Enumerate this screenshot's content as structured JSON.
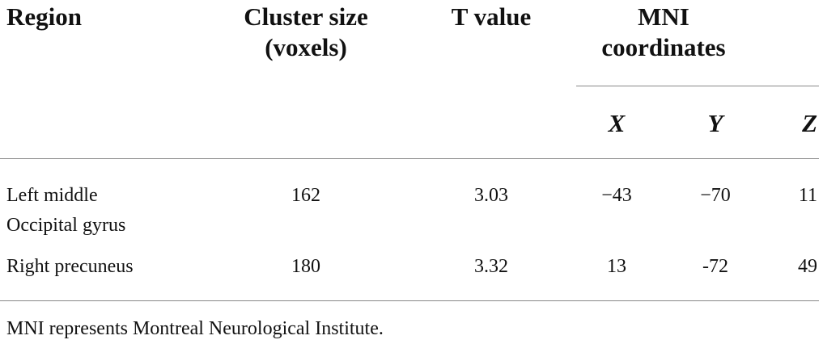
{
  "table": {
    "header": [
      "Region",
      "Cluster size (voxels)",
      "T value",
      "MNI coordinates"
    ],
    "subheader": [
      "X",
      "Y",
      "Z"
    ],
    "rows": [
      [
        "Left middle Occipital gyrus",
        "162",
        "3.03",
        "−43",
        "−70",
        "11"
      ],
      [
        "Right precuneus",
        "180",
        "3.32",
        "13",
        "-72",
        "49"
      ]
    ]
  },
  "footnote": "MNI represents Montreal Neurological Institute."
}
